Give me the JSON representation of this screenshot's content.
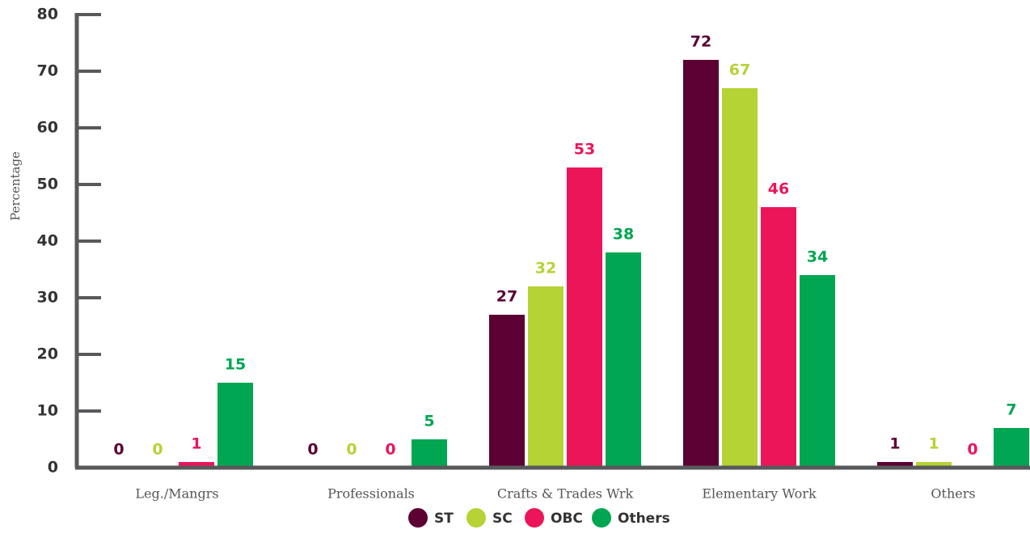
{
  "chart_data": {
    "type": "bar",
    "y_label": "Percentage",
    "categories": [
      "Leg./Mangrs",
      "Professionals",
      "Crafts & Trades Wrk",
      "Elementary Work",
      "Others"
    ],
    "series": [
      {
        "name": "ST",
        "color": "#5c0033",
        "values": [
          0,
          0,
          27,
          72,
          1
        ]
      },
      {
        "name": "SC",
        "color": "#b5d334",
        "values": [
          0,
          0,
          32,
          67,
          1
        ]
      },
      {
        "name": "OBC",
        "color": "#ec1559",
        "values": [
          1,
          0,
          53,
          46,
          0
        ]
      },
      {
        "name": "Others",
        "color": "#00a651",
        "values": [
          15,
          5,
          38,
          34,
          7
        ]
      }
    ],
    "ylim": [
      0,
      80
    ],
    "yticks": [
      0,
      10,
      20,
      30,
      40,
      50,
      60,
      70,
      80
    ],
    "grid": false,
    "legend": "bottom"
  }
}
